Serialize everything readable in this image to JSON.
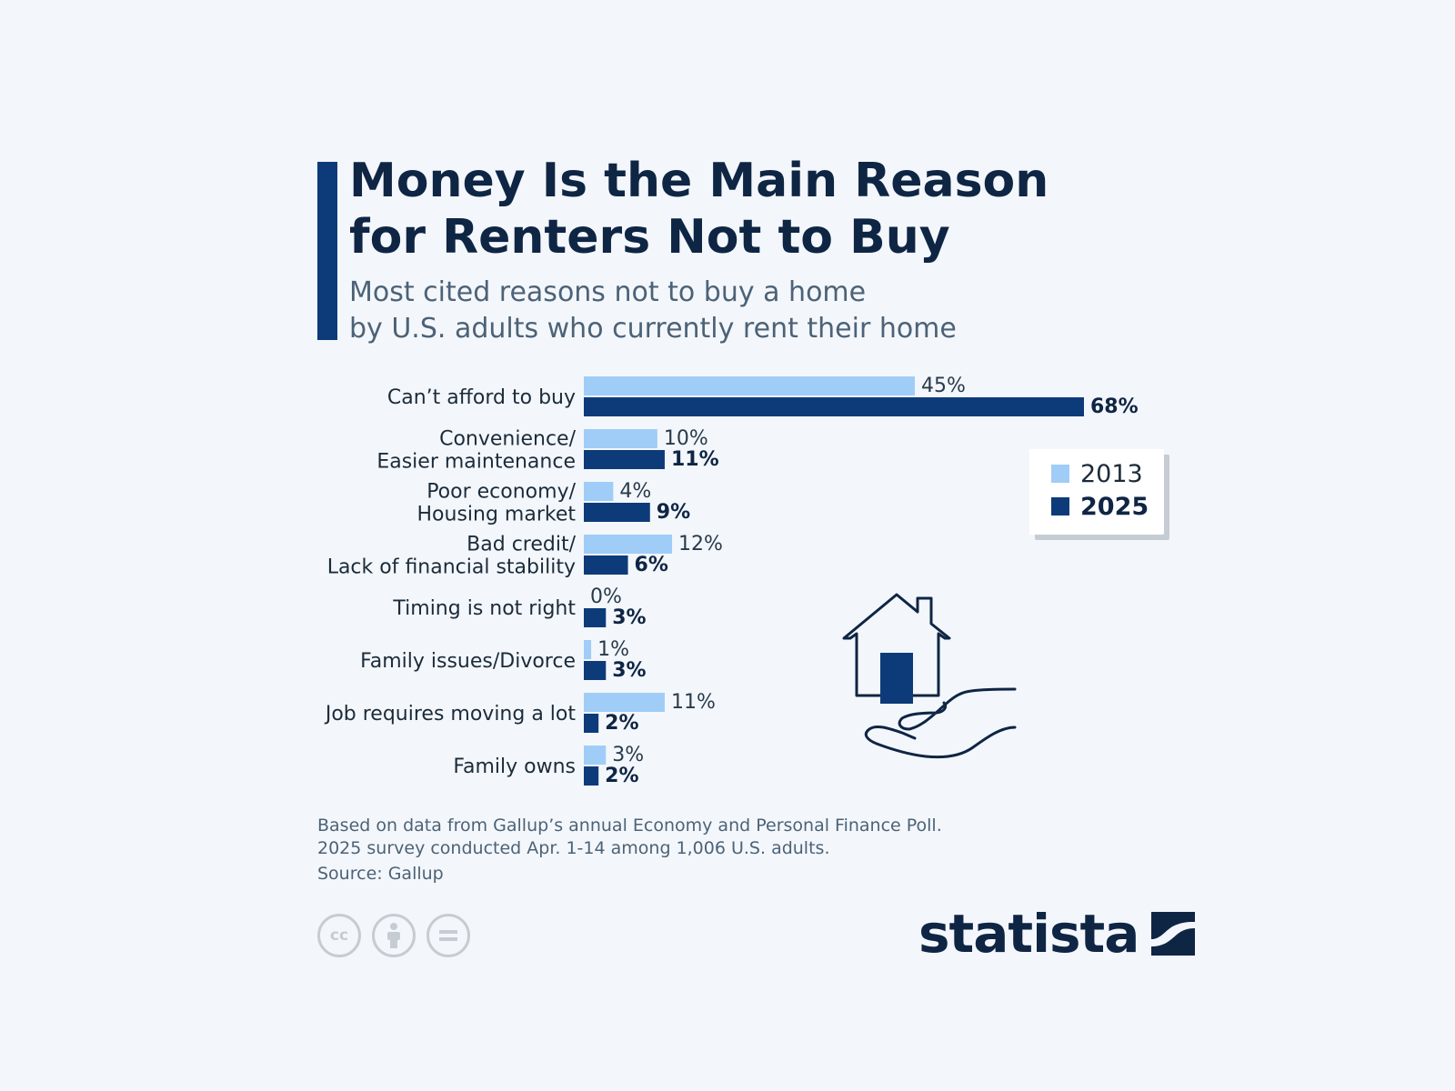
{
  "header": {
    "title_line1": "Money Is the Main Reason",
    "title_line2": "for Renters Not to Buy",
    "subtitle_line1": "Most cited reasons not to buy a home",
    "subtitle_line2": "by U.S. adults who currently rent their home"
  },
  "colors": {
    "accent": "#0d3b7a",
    "series_2013": "#9fcdf7",
    "series_2025": "#0d3b7a"
  },
  "chart_data": {
    "type": "bar",
    "orientation": "horizontal",
    "categories": [
      [
        "Can’t afford to buy"
      ],
      [
        "Convenience/",
        "Easier maintenance"
      ],
      [
        "Poor economy/",
        "Housing market"
      ],
      [
        "Bad credit/",
        "Lack of financial stability"
      ],
      [
        "Timing is not right"
      ],
      [
        "Family issues/Divorce"
      ],
      [
        "Job requires moving a lot"
      ],
      [
        "Family owns"
      ]
    ],
    "series": [
      {
        "name": "2013",
        "values": [
          45,
          10,
          4,
          12,
          0,
          1,
          11,
          3
        ]
      },
      {
        "name": "2025",
        "values": [
          68,
          11,
          9,
          6,
          3,
          3,
          2,
          2
        ]
      }
    ],
    "value_suffix": "%",
    "xlim": [
      0,
      68
    ],
    "grid": false,
    "legend_position": "right"
  },
  "legend": {
    "label_2013": "2013",
    "label_2025": "2025"
  },
  "footer": {
    "note_line1": "Based on data from Gallup’s annual Economy and Personal Finance Poll.",
    "note_line2": "2025 survey conducted Apr. 1-14 among 1,006 U.S. adults.",
    "source": "Source: Gallup",
    "license_icons": [
      "cc-icon",
      "attribution-icon",
      "no-derivatives-icon"
    ],
    "cc_text": "cc",
    "brand": "statista"
  }
}
